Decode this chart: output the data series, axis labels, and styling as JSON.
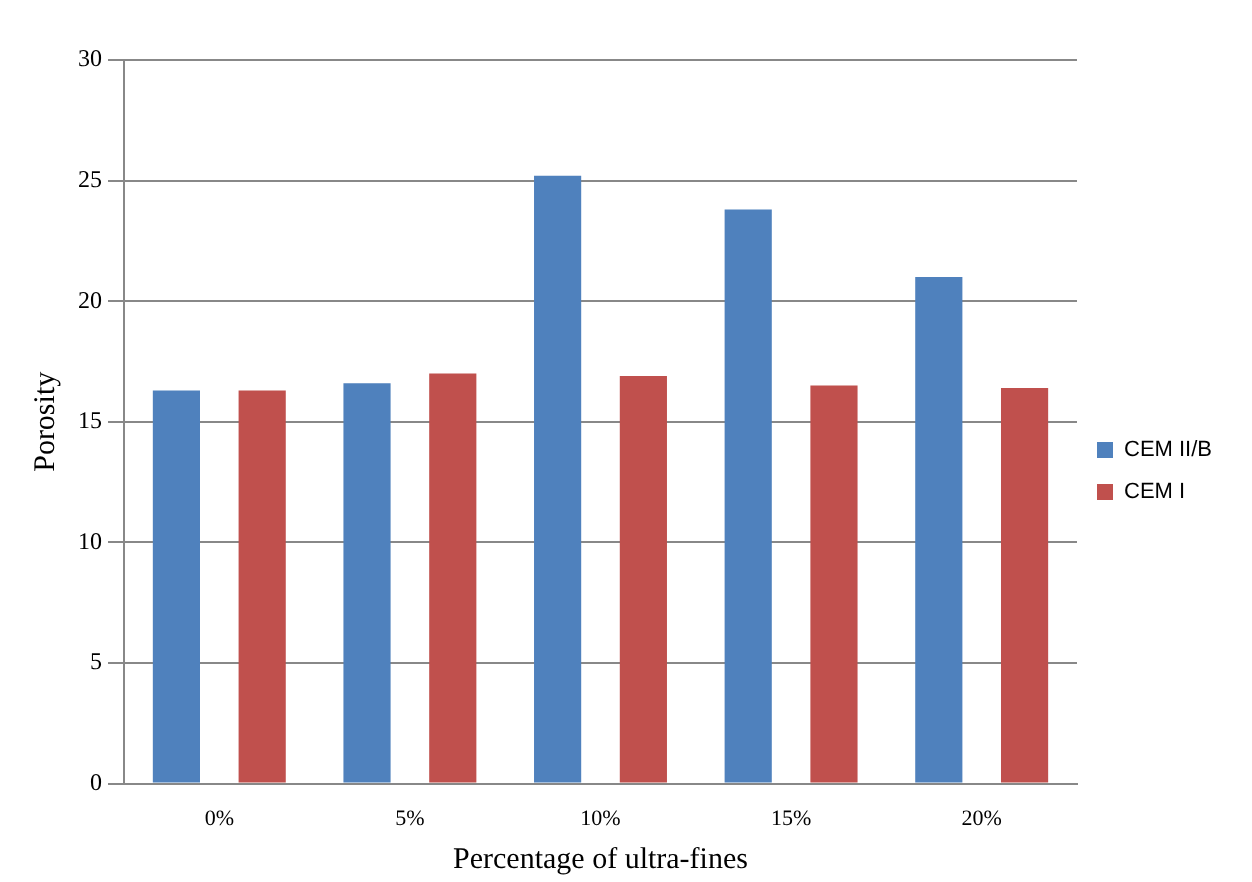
{
  "chart_data": {
    "type": "bar",
    "xlabel": "Percentage of ultra-fines",
    "ylabel": "Porosity",
    "categories": [
      "0%",
      "5%",
      "10%",
      "15%",
      "20%"
    ],
    "series": [
      {
        "name": "CEM II/B",
        "color": "#4f81bd",
        "values": [
          16.3,
          16.6,
          25.2,
          23.8,
          21.0
        ]
      },
      {
        "name": "CEM I",
        "color": "#c0504d",
        "values": [
          16.3,
          17.0,
          16.9,
          16.5,
          16.4
        ]
      }
    ],
    "ylim": [
      0,
      30
    ],
    "yticks": [
      0,
      5,
      10,
      15,
      20,
      25,
      30
    ],
    "grid": "y",
    "legend": "right"
  }
}
